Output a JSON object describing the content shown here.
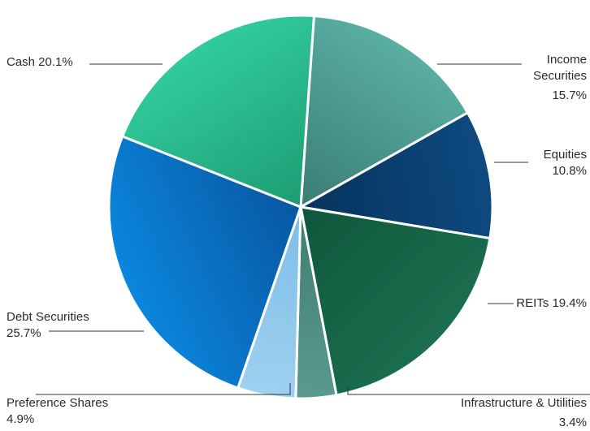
{
  "chart_data": {
    "type": "pie",
    "title": "",
    "legend": "none",
    "slices": [
      {
        "name": "Income Securities",
        "value": 15.7,
        "label_lines": [
          "Income",
          "Securities",
          "15.7%"
        ],
        "color_light": "#5aaea3",
        "color_dark": "#3a7d74"
      },
      {
        "name": "Equities",
        "value": 10.8,
        "label_lines": [
          "Equities",
          "10.8%"
        ],
        "color_light": "#0e4a80",
        "color_dark": "#06335d"
      },
      {
        "name": "REITs",
        "value": 19.4,
        "label_lines": [
          "REITs 19.4%"
        ],
        "color_light": "#1b6e4f",
        "color_dark": "#0f573c"
      },
      {
        "name": "Infrastructure & Utilities",
        "value": 3.4,
        "label_lines": [
          "Infrastructure & Utilities",
          "3.4%"
        ],
        "color_light": "#5a9a8e",
        "color_dark": "#3f7c72"
      },
      {
        "name": "Preference Shares",
        "value": 4.9,
        "label_lines": [
          "Preference Shares",
          "4.9%"
        ],
        "color_light": "#9fd0f0",
        "color_dark": "#7cbde8"
      },
      {
        "name": "Debt Securities",
        "value": 25.7,
        "label_lines": [
          "Debt Securities",
          "25.7%"
        ],
        "color_light": "#0b86de",
        "color_dark": "#0757a0"
      },
      {
        "name": "Cash",
        "value": 20.1,
        "label_lines": [
          "Cash 20.1%"
        ],
        "color_light": "#31cc9c",
        "color_dark": "#1e9c74"
      }
    ]
  }
}
